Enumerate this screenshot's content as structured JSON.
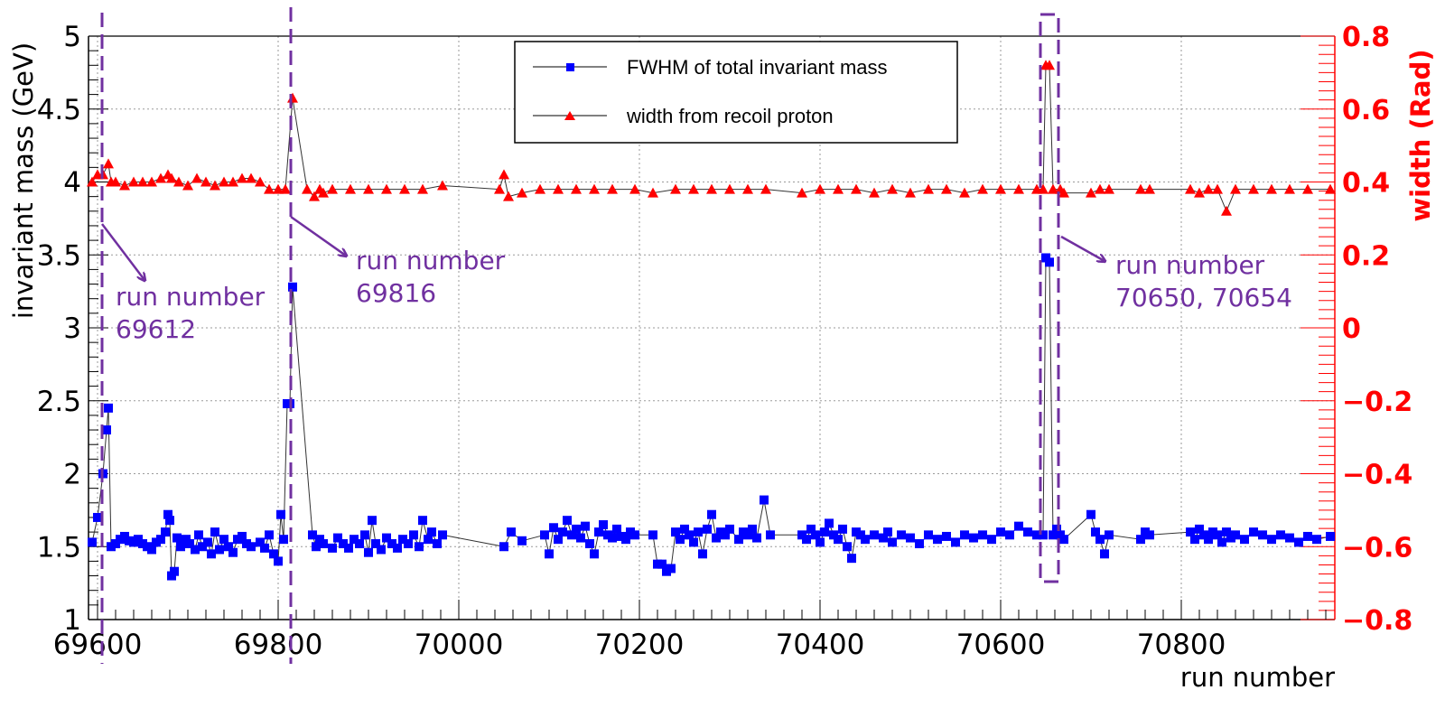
{
  "chart_data": {
    "type": "line",
    "xlabel": "run number",
    "ylabel_left": "invariant mass (GeV)",
    "ylabel_right": "width (Rad)",
    "xlim": [
      69590,
      70970
    ],
    "ylim_left": [
      1,
      5
    ],
    "ylim_right": [
      -0.8,
      0.8
    ],
    "x_ticks": [
      69600,
      69800,
      70000,
      70200,
      70400,
      70600,
      70800
    ],
    "y_ticks_left": [
      "1",
      "1.5",
      "2",
      "2.5",
      "3",
      "3.5",
      "4",
      "4.5",
      "5"
    ],
    "y_ticks_right": [
      "-0.8",
      "-0.6",
      "-0.4",
      "-0.2",
      "0",
      "0.2",
      "0.4",
      "0.6",
      "0.8"
    ],
    "grid": true,
    "legend_position": "top-center",
    "colors": {
      "series1": "#0000ff",
      "series2": "#ff0000",
      "annotation": "#7030a0",
      "right_axis": "#ff0000"
    },
    "series": [
      {
        "name": "FWHM of total invariant mass",
        "axis": "left",
        "marker": "square",
        "points": [
          [
            69594,
            1.53
          ],
          [
            69600,
            1.7
          ],
          [
            69606,
            2.0
          ],
          [
            69610,
            2.3
          ],
          [
            69612,
            2.45
          ],
          [
            69615,
            1.5
          ],
          [
            69620,
            1.52
          ],
          [
            69625,
            1.55
          ],
          [
            69630,
            1.57
          ],
          [
            69635,
            1.54
          ],
          [
            69640,
            1.53
          ],
          [
            69645,
            1.55
          ],
          [
            69650,
            1.52
          ],
          [
            69655,
            1.5
          ],
          [
            69660,
            1.48
          ],
          [
            69665,
            1.53
          ],
          [
            69670,
            1.55
          ],
          [
            69675,
            1.6
          ],
          [
            69678,
            1.72
          ],
          [
            69680,
            1.68
          ],
          [
            69682,
            1.3
          ],
          [
            69685,
            1.33
          ],
          [
            69688,
            1.56
          ],
          [
            69692,
            1.5
          ],
          [
            69698,
            1.55
          ],
          [
            69702,
            1.52
          ],
          [
            69708,
            1.48
          ],
          [
            69712,
            1.58
          ],
          [
            69716,
            1.5
          ],
          [
            69722,
            1.53
          ],
          [
            69726,
            1.45
          ],
          [
            69730,
            1.6
          ],
          [
            69735,
            1.48
          ],
          [
            69740,
            1.55
          ],
          [
            69745,
            1.5
          ],
          [
            69750,
            1.46
          ],
          [
            69755,
            1.55
          ],
          [
            69760,
            1.57
          ],
          [
            69765,
            1.52
          ],
          [
            69770,
            1.5
          ],
          [
            69780,
            1.53
          ],
          [
            69785,
            1.49
          ],
          [
            69790,
            1.58
          ],
          [
            69795,
            1.45
          ],
          [
            69800,
            1.4
          ],
          [
            69803,
            1.72
          ],
          [
            69806,
            1.55
          ],
          [
            69810,
            2.48
          ],
          [
            69813,
            2.48
          ],
          [
            69816,
            3.28
          ],
          [
            69838,
            1.58
          ],
          [
            69842,
            1.5
          ],
          [
            69846,
            1.55
          ],
          [
            69850,
            1.52
          ],
          [
            69860,
            1.49
          ],
          [
            69866,
            1.56
          ],
          [
            69872,
            1.52
          ],
          [
            69878,
            1.49
          ],
          [
            69884,
            1.55
          ],
          [
            69890,
            1.52
          ],
          [
            69896,
            1.58
          ],
          [
            69900,
            1.46
          ],
          [
            69904,
            1.68
          ],
          [
            69908,
            1.52
          ],
          [
            69914,
            1.48
          ],
          [
            69920,
            1.56
          ],
          [
            69926,
            1.52
          ],
          [
            69932,
            1.49
          ],
          [
            69938,
            1.55
          ],
          [
            69944,
            1.52
          ],
          [
            69950,
            1.58
          ],
          [
            69956,
            1.5
          ],
          [
            69960,
            1.68
          ],
          [
            69966,
            1.55
          ],
          [
            69970,
            1.6
          ],
          [
            69976,
            1.52
          ],
          [
            69982,
            1.58
          ],
          [
            70050,
            1.5
          ],
          [
            70058,
            1.6
          ],
          [
            70070,
            1.54
          ],
          [
            70095,
            1.58
          ],
          [
            70100,
            1.45
          ],
          [
            70105,
            1.63
          ],
          [
            70110,
            1.55
          ],
          [
            70115,
            1.6
          ],
          [
            70120,
            1.68
          ],
          [
            70125,
            1.58
          ],
          [
            70130,
            1.62
          ],
          [
            70135,
            1.56
          ],
          [
            70140,
            1.64
          ],
          [
            70145,
            1.52
          ],
          [
            70150,
            1.45
          ],
          [
            70155,
            1.6
          ],
          [
            70160,
            1.65
          ],
          [
            70165,
            1.58
          ],
          [
            70170,
            1.56
          ],
          [
            70175,
            1.62
          ],
          [
            70180,
            1.57
          ],
          [
            70185,
            1.55
          ],
          [
            70190,
            1.6
          ],
          [
            70195,
            1.58
          ],
          [
            70215,
            1.58
          ],
          [
            70220,
            1.38
          ],
          [
            70225,
            1.38
          ],
          [
            70230,
            1.33
          ],
          [
            70235,
            1.35
          ],
          [
            70240,
            1.6
          ],
          [
            70245,
            1.55
          ],
          [
            70250,
            1.62
          ],
          [
            70255,
            1.58
          ],
          [
            70260,
            1.53
          ],
          [
            70265,
            1.6
          ],
          [
            70270,
            1.45
          ],
          [
            70275,
            1.62
          ],
          [
            70280,
            1.72
          ],
          [
            70285,
            1.56
          ],
          [
            70290,
            1.6
          ],
          [
            70295,
            1.58
          ],
          [
            70300,
            1.62
          ],
          [
            70310,
            1.55
          ],
          [
            70315,
            1.6
          ],
          [
            70320,
            1.58
          ],
          [
            70325,
            1.62
          ],
          [
            70330,
            1.56
          ],
          [
            70338,
            1.82
          ],
          [
            70345,
            1.58
          ],
          [
            70380,
            1.58
          ],
          [
            70385,
            1.55
          ],
          [
            70390,
            1.62
          ],
          [
            70395,
            1.58
          ],
          [
            70400,
            1.53
          ],
          [
            70405,
            1.6
          ],
          [
            70410,
            1.66
          ],
          [
            70415,
            1.58
          ],
          [
            70420,
            1.55
          ],
          [
            70425,
            1.62
          ],
          [
            70430,
            1.5
          ],
          [
            70435,
            1.42
          ],
          [
            70440,
            1.6
          ],
          [
            70445,
            1.58
          ],
          [
            70450,
            1.55
          ],
          [
            70460,
            1.58
          ],
          [
            70470,
            1.56
          ],
          [
            70475,
            1.6
          ],
          [
            70480,
            1.53
          ],
          [
            70490,
            1.58
          ],
          [
            70500,
            1.56
          ],
          [
            70510,
            1.52
          ],
          [
            70520,
            1.58
          ],
          [
            70530,
            1.55
          ],
          [
            70540,
            1.57
          ],
          [
            70550,
            1.53
          ],
          [
            70560,
            1.58
          ],
          [
            70570,
            1.56
          ],
          [
            70580,
            1.58
          ],
          [
            70590,
            1.55
          ],
          [
            70600,
            1.6
          ],
          [
            70610,
            1.58
          ],
          [
            70620,
            1.64
          ],
          [
            70630,
            1.6
          ],
          [
            70640,
            1.58
          ],
          [
            70647,
            1.58
          ],
          [
            70650,
            3.48
          ],
          [
            70654,
            3.45
          ],
          [
            70658,
            1.58
          ],
          [
            70662,
            1.62
          ],
          [
            70666,
            1.58
          ],
          [
            70670,
            1.55
          ],
          [
            70700,
            1.72
          ],
          [
            70705,
            1.6
          ],
          [
            70710,
            1.55
          ],
          [
            70715,
            1.45
          ],
          [
            70720,
            1.58
          ],
          [
            70755,
            1.55
          ],
          [
            70760,
            1.6
          ],
          [
            70765,
            1.58
          ],
          [
            70810,
            1.6
          ],
          [
            70815,
            1.55
          ],
          [
            70820,
            1.62
          ],
          [
            70825,
            1.58
          ],
          [
            70830,
            1.55
          ],
          [
            70835,
            1.6
          ],
          [
            70840,
            1.58
          ],
          [
            70845,
            1.53
          ],
          [
            70850,
            1.6
          ],
          [
            70855,
            1.56
          ],
          [
            70860,
            1.58
          ],
          [
            70870,
            1.55
          ],
          [
            70880,
            1.6
          ],
          [
            70890,
            1.58
          ],
          [
            70900,
            1.55
          ],
          [
            70910,
            1.58
          ],
          [
            70920,
            1.56
          ],
          [
            70930,
            1.53
          ],
          [
            70940,
            1.57
          ],
          [
            70950,
            1.55
          ],
          [
            70965,
            1.57
          ]
        ]
      },
      {
        "name": "width from recoil proton",
        "axis": "right",
        "marker": "triangle",
        "points": [
          [
            69594,
            0.4
          ],
          [
            69600,
            0.42
          ],
          [
            69606,
            0.42
          ],
          [
            69612,
            0.45
          ],
          [
            69615,
            0.4
          ],
          [
            69620,
            0.4
          ],
          [
            69630,
            0.39
          ],
          [
            69640,
            0.4
          ],
          [
            69650,
            0.4
          ],
          [
            69660,
            0.4
          ],
          [
            69670,
            0.41
          ],
          [
            69678,
            0.42
          ],
          [
            69682,
            0.41
          ],
          [
            69690,
            0.4
          ],
          [
            69700,
            0.39
          ],
          [
            69710,
            0.41
          ],
          [
            69720,
            0.4
          ],
          [
            69730,
            0.39
          ],
          [
            69740,
            0.4
          ],
          [
            69750,
            0.4
          ],
          [
            69760,
            0.41
          ],
          [
            69770,
            0.41
          ],
          [
            69780,
            0.4
          ],
          [
            69790,
            0.38
          ],
          [
            69800,
            0.38
          ],
          [
            69808,
            0.38
          ],
          [
            69816,
            0.63
          ],
          [
            69832,
            0.38
          ],
          [
            69840,
            0.36
          ],
          [
            69846,
            0.38
          ],
          [
            69850,
            0.37
          ],
          [
            69860,
            0.38
          ],
          [
            69880,
            0.38
          ],
          [
            69900,
            0.38
          ],
          [
            69920,
            0.38
          ],
          [
            69940,
            0.38
          ],
          [
            69960,
            0.38
          ],
          [
            69982,
            0.39
          ],
          [
            70045,
            0.38
          ],
          [
            70050,
            0.42
          ],
          [
            70055,
            0.36
          ],
          [
            70070,
            0.37
          ],
          [
            70090,
            0.38
          ],
          [
            70110,
            0.38
          ],
          [
            70130,
            0.38
          ],
          [
            70150,
            0.38
          ],
          [
            70170,
            0.38
          ],
          [
            70195,
            0.38
          ],
          [
            70215,
            0.37
          ],
          [
            70240,
            0.38
          ],
          [
            70260,
            0.38
          ],
          [
            70280,
            0.38
          ],
          [
            70300,
            0.38
          ],
          [
            70320,
            0.38
          ],
          [
            70340,
            0.38
          ],
          [
            70380,
            0.37
          ],
          [
            70400,
            0.38
          ],
          [
            70420,
            0.38
          ],
          [
            70440,
            0.38
          ],
          [
            70460,
            0.37
          ],
          [
            70480,
            0.38
          ],
          [
            70500,
            0.37
          ],
          [
            70520,
            0.38
          ],
          [
            70540,
            0.38
          ],
          [
            70560,
            0.37
          ],
          [
            70580,
            0.38
          ],
          [
            70600,
            0.38
          ],
          [
            70620,
            0.38
          ],
          [
            70640,
            0.38
          ],
          [
            70647,
            0.38
          ],
          [
            70650,
            0.72
          ],
          [
            70654,
            0.72
          ],
          [
            70658,
            0.38
          ],
          [
            70666,
            0.38
          ],
          [
            70670,
            0.37
          ],
          [
            70700,
            0.37
          ],
          [
            70710,
            0.38
          ],
          [
            70720,
            0.38
          ],
          [
            70755,
            0.38
          ],
          [
            70765,
            0.38
          ],
          [
            70810,
            0.38
          ],
          [
            70820,
            0.37
          ],
          [
            70830,
            0.38
          ],
          [
            70840,
            0.38
          ],
          [
            70850,
            0.32
          ],
          [
            70860,
            0.38
          ],
          [
            70880,
            0.38
          ],
          [
            70900,
            0.38
          ],
          [
            70920,
            0.38
          ],
          [
            70940,
            0.38
          ],
          [
            70965,
            0.38
          ]
        ]
      }
    ],
    "annotations": [
      {
        "lines": [
          "run number",
          "69612"
        ]
      },
      {
        "lines": [
          "run number",
          "69816"
        ]
      },
      {
        "lines": [
          "run number",
          "70650, 70654"
        ]
      }
    ]
  }
}
